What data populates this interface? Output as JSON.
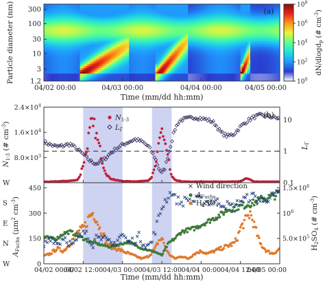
{
  "chart_data": [
    {
      "panel": "(a)",
      "type": "heatmap",
      "title": "",
      "xlabel": "Time (mm/dd hh:mm)",
      "ylabel": "Particle diameter (nm)",
      "x_ticks": [
        "04/02 00:00",
        "04/03 00:00",
        "04/04 00:00",
        "04/05 00:00"
      ],
      "xlim": [
        "04/02 00:00",
        "04/05 00:00"
      ],
      "y_scale": "log",
      "y_ticks": [
        "1.2",
        "3",
        "10",
        "30",
        "100",
        "300"
      ],
      "y_tick_values": [
        1.2,
        3,
        10,
        30,
        100,
        300
      ],
      "ylim": [
        1.2,
        450
      ],
      "colorbar": {
        "label": "dN/dlogd",
        "label_sub": "p",
        "label_unit": " (# cm",
        "label_unit_sup": "-3",
        "label_unit_end": ")",
        "scale": "log",
        "ticks": [
          {
            "base": "10",
            "exp": "0",
            "value": 1
          },
          {
            "base": "10",
            "exp": "2",
            "value": 100
          },
          {
            "base": "10",
            "exp": "4",
            "value": 10000
          },
          {
            "base": "10",
            "exp": "6",
            "value": 1000000
          },
          {
            "base": "10",
            "exp": "8",
            "value": 100000000
          }
        ],
        "colors": [
          "#ffffff",
          "#2a3bcf",
          "#1f9bff",
          "#22e0e0",
          "#5cff8a",
          "#e8f53a",
          "#ff9a1a",
          "#e8261a",
          "#8a0a0a"
        ]
      },
      "events": [
        {
          "start_hour": 12,
          "end_hour": 26,
          "d_min": 2.2,
          "d_max": 20,
          "peak": 5.5,
          "growth": 0.55
        },
        {
          "start_hour": 35,
          "end_hour": 44,
          "d_min": 2.0,
          "d_max": 28,
          "peak": 5.0,
          "growth": 0.6
        },
        {
          "start_hour": 61,
          "end_hour": 63,
          "d_min": 3.0,
          "d_max": 10,
          "peak": 3.5,
          "growth": 0.3
        }
      ]
    },
    {
      "panel": "(b)",
      "type": "scatter",
      "title": "",
      "xlabel": "Time (mm/dd hh:mm)",
      "x_ticks": [
        "04/02 00:00",
        "04/02 12:00",
        "04/03 00:00",
        "04/03 12:00",
        "04/04 00:00",
        "04/04 12:00",
        "04/05 00:00"
      ],
      "xlim": [
        "04/02 00:00",
        "04/05 00:00"
      ],
      "highlight_bands_hours": [
        [
          12,
          24
        ],
        [
          33,
          39
        ]
      ],
      "upper": {
        "ylabel_left": {
          "pre": "N",
          "sub": "1-3",
          "unit": " (# cm",
          "sup": "-3",
          "end": ")"
        },
        "ylabel_right": {
          "pre": "L",
          "sub": "Γ"
        },
        "left_ticks": [
          {
            "label": "8.0×10",
            "exp": "3",
            "value": 8000
          },
          {
            "label": "1.6×10",
            "exp": "4",
            "value": 16000
          },
          {
            "label": "2.4×10",
            "exp": "4",
            "value": 24000
          }
        ],
        "left_lim": [
          0,
          24000
        ],
        "right_scale": "log",
        "right_ticks": [
          {
            "label": "0.1",
            "value": 0.1
          },
          {
            "label": "1",
            "value": 1
          },
          {
            "label": "10",
            "value": 10
          }
        ],
        "right_lim": [
          0.1,
          25
        ],
        "reference_line_right": 1,
        "legend": {
          "position": "top-center",
          "entries": [
            {
              "pre": "N",
              "sub": "1-3",
              "color": "#c0203a",
              "marker": "circle"
            },
            {
              "pre": "L",
              "sub": "Γ",
              "color": "#3c2f5e",
              "marker": "diamond"
            }
          ]
        },
        "series": [
          {
            "name": "N1-3",
            "axis": "left",
            "color": "#c0203a",
            "x": [
              0,
              2,
              4,
              6,
              8,
              10,
              11,
              12,
              13,
              13.5,
              14,
              14.5,
              15,
              15.5,
              16,
              16.5,
              17,
              17.5,
              18,
              19,
              20,
              22,
              24,
              26,
              28,
              30,
              32,
              33,
              34,
              35,
              35.5,
              36,
              36.5,
              37,
              37.5,
              38,
              38.5,
              39,
              40,
              42,
              44,
              48,
              52,
              56,
              60,
              61,
              62,
              63,
              64,
              66,
              68,
              70,
              72
            ],
            "y": [
              300,
              300,
              400,
              500,
              600,
              800,
              2000,
              6000,
              10000,
              14000,
              16000,
              19000,
              17000,
              18000,
              15000,
              13000,
              11000,
              9000,
              6000,
              3000,
              1500,
              800,
              500,
              400,
              400,
              500,
              800,
              2000,
              5000,
              11000,
              14000,
              17000,
              15000,
              13000,
              10000,
              8000,
              4000,
              2000,
              800,
              400,
              300,
              300,
              300,
              300,
              400,
              1000,
              1300,
              900,
              400,
              300,
              300,
              300,
              300
            ]
          },
          {
            "name": "LΓ",
            "axis": "right",
            "color": "#3c2f5e",
            "x": [
              0,
              2,
              4,
              6,
              8,
              10,
              12,
              14,
              16,
              18,
              20,
              22,
              24,
              26,
              28,
              30,
              32,
              34,
              35,
              36,
              37,
              38,
              39,
              40,
              41,
              42,
              44,
              46,
              48,
              50,
              52,
              54,
              56,
              58,
              60,
              62,
              64,
              66,
              68,
              70,
              72
            ],
            "y": [
              2.0,
              1.6,
              1.4,
              1.5,
              1.7,
              1.2,
              0.8,
              0.5,
              0.4,
              0.5,
              0.8,
              1.2,
              1.6,
              2.0,
              2.4,
              2.0,
              1.4,
              0.6,
              0.3,
              0.2,
              0.3,
              0.8,
              2.0,
              5.0,
              8.0,
              10.0,
              11.0,
              12.0,
              11.0,
              10.0,
              8.0,
              4.0,
              3.0,
              3.5,
              6.0,
              9.0,
              12.0,
              14.0,
              13.0,
              12.0,
              11.0
            ]
          }
        ]
      },
      "lower": {
        "ylabel_left": {
          "pre": "A",
          "sub": "Fuchs",
          "unit": " (μm",
          "sup": "2",
          "mid": " cm",
          "sup2": "-3",
          "end": ")"
        },
        "ylabel_right": {
          "pre": "H",
          "sub": "2",
          "mid": "SO",
          "sub2": "4",
          "unit": " (# cm",
          "sup": "-3",
          "end": ")"
        },
        "left_ticks": [
          {
            "label": "0",
            "value": 0
          },
          {
            "label": "150",
            "value": 150
          },
          {
            "label": "300",
            "value": 300
          },
          {
            "label": "450",
            "value": 450
          }
        ],
        "left_lim": [
          0,
          480
        ],
        "right_ticks": [
          {
            "label": "5.0×10",
            "exp": "5",
            "value": 500000
          },
          {
            "label": "10",
            "exp": "6",
            "value": 1000000
          },
          {
            "label": "1.5×10",
            "exp": "6",
            "value": 1500000
          }
        ],
        "right_lim": [
          0,
          1600000
        ],
        "wind_axis": {
          "ticks": [
            {
              "label": "W",
              "value": 0
            },
            {
              "label": "N",
              "value": 90
            },
            {
              "label": "E",
              "value": 180
            },
            {
              "label": "S",
              "value": 270
            },
            {
              "label": "W",
              "value": 360
            }
          ]
        },
        "legend": {
          "position": "top-right",
          "entries": [
            {
              "label": "Wind direction",
              "color": "#1b3a7a",
              "marker": "x"
            },
            {
              "pre": "A",
              "sub": "Fuchs",
              "color": "#3f7a3a",
              "marker": "circle"
            },
            {
              "pre": "H",
              "sub": "2",
              "mid": "SO",
              "sub2": "4",
              "color": "#e07a2a",
              "marker": "circle"
            }
          ]
        },
        "series": [
          {
            "name": "Wind direction",
            "axis": "wind",
            "color": "#1b3a7a",
            "x": [
              0,
              1,
              2,
              3,
              4,
              5,
              6,
              7,
              8,
              9,
              10,
              11,
              12,
              13,
              14,
              15,
              16,
              17,
              18,
              19,
              20,
              21,
              22,
              23,
              24,
              25,
              26,
              27,
              28,
              29,
              30,
              31,
              32,
              33,
              34,
              35,
              36,
              37,
              38,
              39,
              40,
              41,
              42,
              43,
              44,
              45,
              46,
              47,
              48,
              50,
              52,
              54,
              56,
              58,
              60,
              62,
              64,
              66,
              68,
              70,
              72
            ],
            "y": [
              80,
              100,
              120,
              110,
              90,
              100,
              120,
              110,
              90,
              80,
              100,
              120,
              130,
              150,
              110,
              90,
              120,
              140,
              110,
              100,
              90,
              80,
              100,
              120,
              130,
              110,
              90,
              100,
              110,
              120,
              100,
              90,
              80,
              100,
              150,
              200,
              250,
              280,
              300,
              320,
              290,
              280,
              270,
              280,
              290,
              275,
              280,
              285,
              280,
              275,
              280,
              270,
              260,
              250,
              280,
              290,
              300,
              280,
              290,
              300,
              310
            ]
          },
          {
            "name": "AFuchs",
            "axis": "left",
            "color": "#3f7a3a",
            "x": [
              0,
              2,
              4,
              6,
              8,
              10,
              12,
              14,
              16,
              18,
              20,
              22,
              24,
              26,
              28,
              30,
              32,
              34,
              36,
              38,
              40,
              42,
              44,
              46,
              48,
              50,
              52,
              54,
              56,
              58,
              60,
              62,
              64,
              66,
              68,
              70,
              72
            ],
            "y": [
              160,
              150,
              150,
              180,
              190,
              170,
              150,
              130,
              120,
              110,
              100,
              110,
              120,
              130,
              110,
              90,
              80,
              70,
              50,
              120,
              150,
              190,
              200,
              210,
              230,
              250,
              270,
              290,
              320,
              330,
              340,
              350,
              360,
              380,
              390,
              400,
              420
            ]
          },
          {
            "name": "H2SO4",
            "axis": "right",
            "color": "#e07a2a",
            "x": [
              0,
              2,
              4,
              6,
              8,
              10,
              12,
              13,
              14,
              15,
              16,
              17,
              18,
              19,
              20,
              22,
              24,
              26,
              28,
              30,
              32,
              34,
              35,
              36,
              37,
              38,
              40,
              42,
              44,
              46,
              48,
              50,
              52,
              54,
              56,
              58,
              59,
              60,
              61,
              62,
              63,
              64,
              65,
              66,
              68,
              70,
              72
            ],
            "y": [
              150000,
              200000,
              300000,
              250000,
              400000,
              600000,
              700000,
              800000,
              950000,
              1000000,
              900000,
              700000,
              600000,
              450000,
              350000,
              300000,
              250000,
              200000,
              150000,
              100000,
              150000,
              300000,
              450000,
              500000,
              350000,
              200000,
              100000,
              150000,
              100000,
              200000,
              250000,
              200000,
              250000,
              300000,
              350000,
              400000,
              500000,
              700000,
              800000,
              900000,
              1000000,
              800000,
              600000,
              400000,
              250000,
              200000,
              300000
            ]
          }
        ]
      }
    }
  ]
}
